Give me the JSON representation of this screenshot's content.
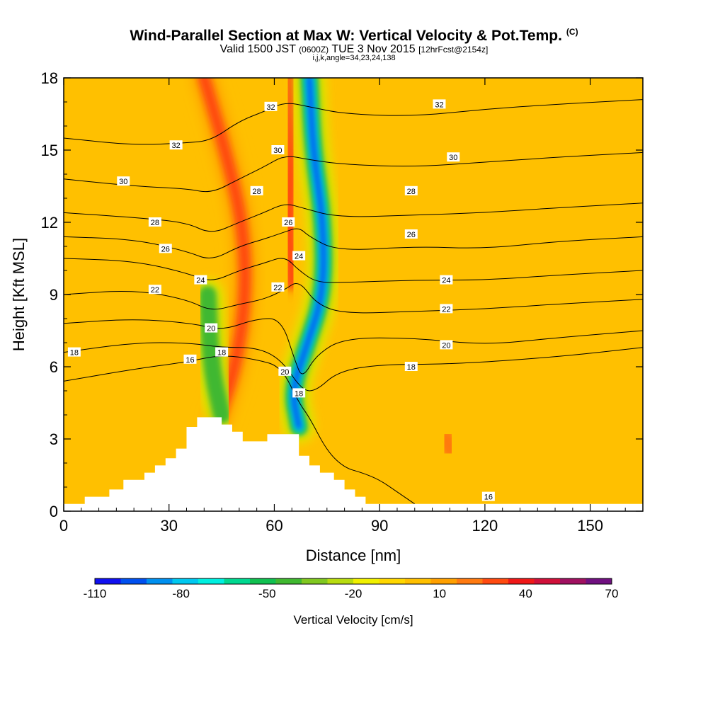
{
  "header": {
    "title": "Wind-Parallel Section at Max W: Vertical Velocity & Pot.Temp.",
    "copyright": "(C)",
    "valid_prefix": "Valid 1500 JST",
    "valid_utc": "(0600Z)",
    "valid_date": "TUE 3 Nov 2015",
    "forecast": "[12hrFcst@2154z]",
    "params": "i,j,k,angle=34,23,24,138"
  },
  "chart_data": {
    "type": "contour",
    "title": "Wind-Parallel Section at Max W: Vertical Velocity & Pot.Temp.",
    "xlabel": "Distance [nm]",
    "ylabel": "Height [Kft MSL]",
    "xlim": [
      0,
      165
    ],
    "ylim": [
      0,
      18
    ],
    "xticks": [
      "0",
      "30",
      "60",
      "90",
      "120",
      "150"
    ],
    "yticks": [
      "0",
      "3",
      "6",
      "9",
      "12",
      "15",
      "18"
    ],
    "colorbar": {
      "label": "Vertical Velocity [cm/s]",
      "min": -110,
      "max": 70,
      "step": 10,
      "tick_labels": [
        "-110",
        "-80",
        "-50",
        "-20",
        "10",
        "40",
        "70"
      ],
      "colors": [
        "#1010f0",
        "#0050f0",
        "#0090f0",
        "#00c8f0",
        "#00f0e0",
        "#00d890",
        "#10c050",
        "#40b830",
        "#80c820",
        "#b8dc10",
        "#f0f000",
        "#ffd700",
        "#ffc000",
        "#ffa000",
        "#ff7a10",
        "#ff4a10",
        "#f01818",
        "#d0103a",
        "#a01060",
        "#701080"
      ]
    },
    "terrain_kft": [
      [
        0,
        0.3
      ],
      [
        6,
        0.3
      ],
      [
        6,
        0.6
      ],
      [
        13,
        0.6
      ],
      [
        13,
        0.9
      ],
      [
        17,
        0.9
      ],
      [
        17,
        1.3
      ],
      [
        23,
        1.3
      ],
      [
        23,
        1.6
      ],
      [
        26,
        1.6
      ],
      [
        26,
        1.9
      ],
      [
        29,
        1.9
      ],
      [
        29,
        2.2
      ],
      [
        32,
        2.2
      ],
      [
        32,
        2.6
      ],
      [
        35,
        2.6
      ],
      [
        35,
        3.5
      ],
      [
        38,
        3.5
      ],
      [
        38,
        3.9
      ],
      [
        45,
        3.9
      ],
      [
        45,
        3.6
      ],
      [
        48,
        3.6
      ],
      [
        48,
        3.3
      ],
      [
        51,
        3.3
      ],
      [
        51,
        2.9
      ],
      [
        58,
        2.9
      ],
      [
        58,
        3.2
      ],
      [
        67,
        3.2
      ],
      [
        67,
        2.3
      ],
      [
        70,
        2.3
      ],
      [
        70,
        1.9
      ],
      [
        73,
        1.9
      ],
      [
        73,
        1.6
      ],
      [
        77,
        1.6
      ],
      [
        77,
        1.3
      ],
      [
        80,
        1.3
      ],
      [
        80,
        0.9
      ],
      [
        83,
        0.9
      ],
      [
        83,
        0.6
      ],
      [
        86,
        0.6
      ],
      [
        86,
        0.3
      ],
      [
        165,
        0.3
      ]
    ],
    "updraft_bands": [
      {
        "name": "upwind updraft",
        "points": [
          [
            40,
            18
          ],
          [
            46,
            15
          ],
          [
            51,
            12
          ],
          [
            52,
            9
          ],
          [
            49,
            6
          ],
          [
            44,
            3.8
          ]
        ],
        "peak_cm_s": 40
      },
      {
        "name": "lee updraft",
        "points": [
          [
            65,
            18
          ],
          [
            65,
            15
          ],
          [
            64,
            12
          ],
          [
            65,
            9.5
          ]
        ],
        "peak_cm_s": 40
      },
      {
        "name": "surface updraft",
        "points": [
          [
            109,
            3
          ],
          [
            110,
            2.6
          ]
        ],
        "peak_cm_s": 30
      }
    ],
    "downdraft_bands": [
      {
        "name": "descending plume",
        "points": [
          [
            70,
            18
          ],
          [
            71,
            15
          ],
          [
            74,
            12
          ],
          [
            74,
            9
          ],
          [
            69,
            6.8
          ],
          [
            65,
            5
          ],
          [
            67,
            3.5
          ]
        ],
        "peak_cm_s": -110
      },
      {
        "name": "weak downdraft",
        "points": [
          [
            41,
            9
          ],
          [
            42,
            6
          ],
          [
            45,
            4
          ]
        ],
        "peak_cm_s": -40
      }
    ],
    "isentropes": [
      {
        "value": 16,
        "label": "16",
        "points": [
          [
            0,
            5.4
          ],
          [
            20,
            5.9
          ],
          [
            35,
            6.2
          ],
          [
            45,
            6.5
          ],
          [
            55,
            6.3
          ],
          [
            62,
            6.0
          ],
          [
            67,
            4.5
          ],
          [
            70,
            3.9
          ],
          [
            75,
            2.5
          ],
          [
            80,
            1.8
          ],
          [
            85,
            1.6
          ],
          [
            90,
            1.3
          ],
          [
            95,
            0.8
          ],
          [
            100,
            0.3
          ]
        ]
      },
      {
        "value": 18,
        "label": "18",
        "points": [
          [
            0,
            6.6
          ],
          [
            20,
            7.0
          ],
          [
            35,
            7.0
          ],
          [
            45,
            6.8
          ],
          [
            55,
            6.8
          ],
          [
            62,
            6.3
          ],
          [
            68,
            5.0
          ],
          [
            72,
            5.0
          ],
          [
            78,
            5.8
          ],
          [
            90,
            6.1
          ],
          [
            110,
            6.1
          ],
          [
            140,
            6.4
          ],
          [
            165,
            6.8
          ]
        ]
      },
      {
        "value": 20,
        "label": "20",
        "points": [
          [
            0,
            7.8
          ],
          [
            20,
            8.0
          ],
          [
            37,
            7.8
          ],
          [
            45,
            7.5
          ],
          [
            55,
            8.0
          ],
          [
            62,
            8.0
          ],
          [
            66,
            6.2
          ],
          [
            68,
            5.5
          ],
          [
            72,
            6.5
          ],
          [
            80,
            7.2
          ],
          [
            100,
            7.2
          ],
          [
            120,
            6.9
          ],
          [
            140,
            7.2
          ],
          [
            165,
            7.5
          ]
        ]
      },
      {
        "value": 22,
        "label": "22",
        "points": [
          [
            0,
            9.0
          ],
          [
            20,
            9.2
          ],
          [
            35,
            8.8
          ],
          [
            42,
            8.3
          ],
          [
            50,
            8.6
          ],
          [
            57,
            8.8
          ],
          [
            63,
            9.2
          ],
          [
            67,
            9.6
          ],
          [
            72,
            8.6
          ],
          [
            80,
            8.2
          ],
          [
            100,
            8.3
          ],
          [
            120,
            8.4
          ],
          [
            140,
            8.6
          ],
          [
            165,
            8.8
          ]
        ]
      },
      {
        "value": 24,
        "label": "24",
        "points": [
          [
            0,
            10.5
          ],
          [
            20,
            10.4
          ],
          [
            35,
            9.9
          ],
          [
            42,
            9.5
          ],
          [
            50,
            10.0
          ],
          [
            57,
            10.3
          ],
          [
            63,
            10.6
          ],
          [
            67,
            10.0
          ],
          [
            72,
            9.5
          ],
          [
            80,
            9.5
          ],
          [
            100,
            9.6
          ],
          [
            120,
            9.6
          ],
          [
            140,
            9.8
          ],
          [
            165,
            10.0
          ]
        ]
      },
      {
        "value": 26,
        "label": "26",
        "points": [
          [
            0,
            11.4
          ],
          [
            20,
            11.3
          ],
          [
            35,
            10.8
          ],
          [
            42,
            10.4
          ],
          [
            50,
            11.0
          ],
          [
            57,
            11.3
          ],
          [
            63,
            11.6
          ],
          [
            67,
            11.8
          ],
          [
            70,
            11.4
          ],
          [
            78,
            10.8
          ],
          [
            100,
            11.0
          ],
          [
            120,
            10.9
          ],
          [
            140,
            11.2
          ],
          [
            165,
            11.4
          ]
        ]
      },
      {
        "value": 28,
        "label": "28",
        "points": [
          [
            0,
            12.4
          ],
          [
            20,
            12.2
          ],
          [
            35,
            12.0
          ],
          [
            42,
            11.5
          ],
          [
            50,
            12.0
          ],
          [
            57,
            12.4
          ],
          [
            63,
            12.8
          ],
          [
            68,
            12.6
          ],
          [
            78,
            12.2
          ],
          [
            100,
            12.3
          ],
          [
            120,
            12.4
          ],
          [
            140,
            12.6
          ],
          [
            165,
            12.8
          ]
        ]
      },
      {
        "value": 30,
        "label": "30",
        "points": [
          [
            0,
            13.8
          ],
          [
            20,
            13.5
          ],
          [
            35,
            13.4
          ],
          [
            42,
            13.2
          ],
          [
            50,
            13.8
          ],
          [
            57,
            14.3
          ],
          [
            63,
            14.8
          ],
          [
            70,
            14.6
          ],
          [
            80,
            14.4
          ],
          [
            100,
            14.3
          ],
          [
            120,
            14.5
          ],
          [
            140,
            14.7
          ],
          [
            165,
            14.9
          ]
        ]
      },
      {
        "value": 32,
        "label": "32",
        "points": [
          [
            0,
            15.5
          ],
          [
            20,
            15.2
          ],
          [
            35,
            15.3
          ],
          [
            42,
            15.4
          ],
          [
            50,
            16.2
          ],
          [
            57,
            16.6
          ],
          [
            63,
            17.0
          ],
          [
            70,
            16.8
          ],
          [
            80,
            16.5
          ],
          [
            100,
            16.4
          ],
          [
            120,
            16.7
          ],
          [
            140,
            16.9
          ],
          [
            165,
            17.1
          ]
        ]
      }
    ],
    "contour_labels": [
      {
        "text": "32",
        "x": 59,
        "y": 16.8
      },
      {
        "text": "32",
        "x": 107,
        "y": 16.9
      },
      {
        "text": "32",
        "x": 32,
        "y": 15.2
      },
      {
        "text": "30",
        "x": 61,
        "y": 15.0
      },
      {
        "text": "30",
        "x": 111,
        "y": 14.7
      },
      {
        "text": "30",
        "x": 17,
        "y": 13.7
      },
      {
        "text": "28",
        "x": 55,
        "y": 13.3
      },
      {
        "text": "28",
        "x": 99,
        "y": 13.3
      },
      {
        "text": "28",
        "x": 26,
        "y": 12.0
      },
      {
        "text": "26",
        "x": 64,
        "y": 12.0
      },
      {
        "text": "26",
        "x": 99,
        "y": 11.5
      },
      {
        "text": "26",
        "x": 29,
        "y": 10.9
      },
      {
        "text": "24",
        "x": 67,
        "y": 10.6
      },
      {
        "text": "24",
        "x": 109,
        "y": 9.6
      },
      {
        "text": "24",
        "x": 39,
        "y": 9.6
      },
      {
        "text": "22",
        "x": 61,
        "y": 9.3
      },
      {
        "text": "22",
        "x": 26,
        "y": 9.2
      },
      {
        "text": "22",
        "x": 109,
        "y": 8.4
      },
      {
        "text": "20",
        "x": 42,
        "y": 7.6
      },
      {
        "text": "20",
        "x": 109,
        "y": 6.9
      },
      {
        "text": "18",
        "x": 3,
        "y": 6.6
      },
      {
        "text": "18",
        "x": 45,
        "y": 6.6
      },
      {
        "text": "16",
        "x": 36,
        "y": 6.3
      },
      {
        "text": "20",
        "x": 63,
        "y": 5.8
      },
      {
        "text": "18",
        "x": 67,
        "y": 4.9
      },
      {
        "text": "18",
        "x": 99,
        "y": 6.0
      },
      {
        "text": "16",
        "x": 121,
        "y": 0.6
      }
    ]
  }
}
